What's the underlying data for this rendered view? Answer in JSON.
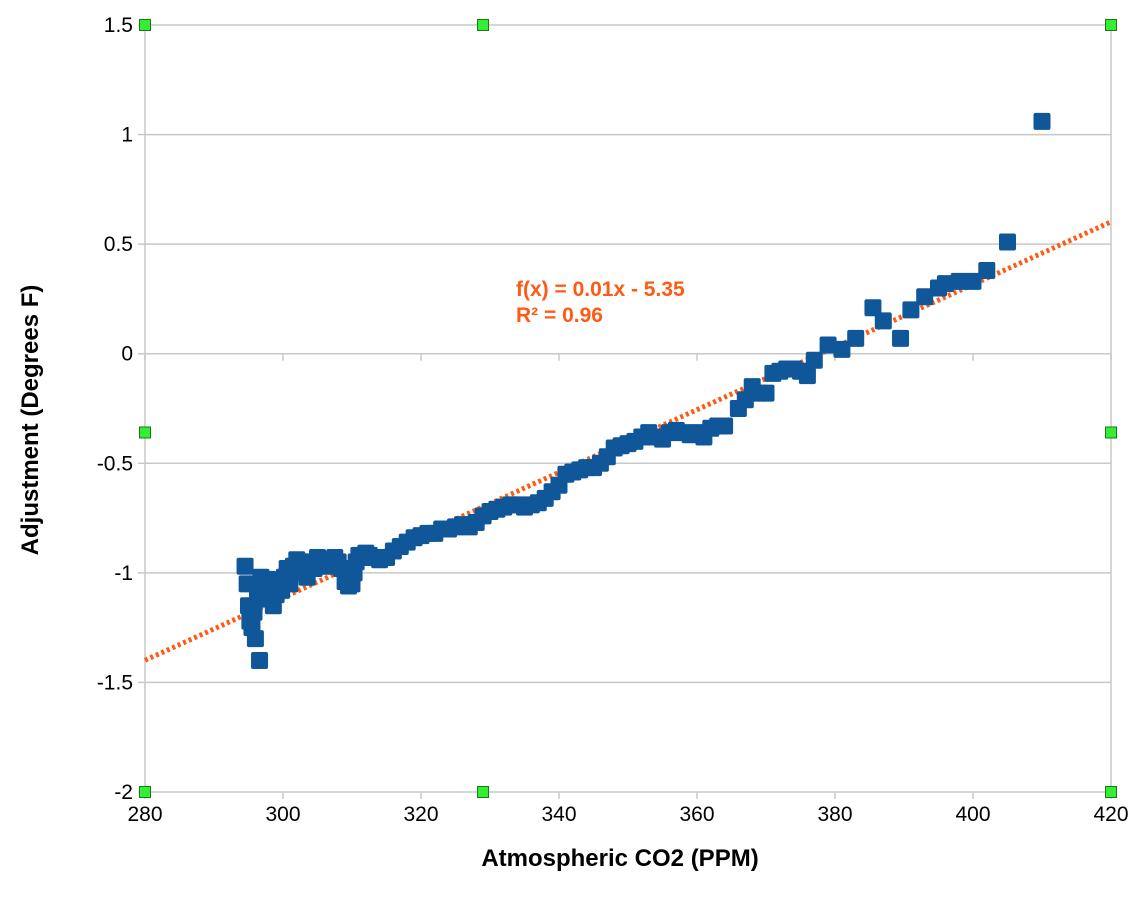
{
  "chart_data": {
    "type": "scatter",
    "xlabel": "Atmospheric CO2 (PPM)",
    "ylabel": "Adjustment (Degrees F)",
    "xlim": [
      280,
      420
    ],
    "ylim": [
      -2,
      1.5
    ],
    "xticks": [
      280,
      300,
      320,
      340,
      360,
      380,
      400,
      420
    ],
    "yticks": [
      1.5,
      1,
      0.5,
      0,
      -0.5,
      -1,
      -1.5,
      -2
    ],
    "ytick_labels": [
      "1.5",
      "1",
      "0.5",
      "0",
      "-0.5",
      "-1",
      "-1.5",
      "-2"
    ],
    "grid": "horizontal",
    "marker": "square",
    "colors": {
      "points": "#0f5799",
      "trendline": "#ff5a14",
      "grid": "#c8c8c8",
      "handles": "#33ee33"
    },
    "trendline": {
      "slope": 0.01429,
      "intercept": -5.4,
      "equation": "f(x) = 0.01x - 5.35",
      "r_squared": "R² = 0.96"
    },
    "series": [
      {
        "points": [
          [
            294.5,
            -0.97
          ],
          [
            294.8,
            -1.05
          ],
          [
            295.0,
            -1.15
          ],
          [
            295.2,
            -1.22
          ],
          [
            295.5,
            -1.25
          ],
          [
            295.8,
            -1.18
          ],
          [
            296.0,
            -1.3
          ],
          [
            296.3,
            -1.1
          ],
          [
            296.6,
            -1.4
          ],
          [
            296.8,
            -1.02
          ],
          [
            297.0,
            -1.08
          ],
          [
            297.4,
            -1.12
          ],
          [
            297.8,
            -1.03
          ],
          [
            298.2,
            -1.06
          ],
          [
            298.6,
            -1.15
          ],
          [
            299.0,
            -1.1
          ],
          [
            299.4,
            -1.05
          ],
          [
            299.8,
            -1.08
          ],
          [
            300.2,
            -1.02
          ],
          [
            300.6,
            -0.98
          ],
          [
            301.0,
            -1.05
          ],
          [
            301.5,
            -0.97
          ],
          [
            302.0,
            -0.94
          ],
          [
            302.5,
            -1.0
          ],
          [
            303.0,
            -0.96
          ],
          [
            303.5,
            -1.02
          ],
          [
            304.0,
            -0.95
          ],
          [
            304.5,
            -0.98
          ],
          [
            305.0,
            -0.93
          ],
          [
            305.5,
            -0.96
          ],
          [
            306.0,
            -0.94
          ],
          [
            306.5,
            -0.97
          ],
          [
            307.0,
            -0.95
          ],
          [
            307.5,
            -0.93
          ],
          [
            308.0,
            -0.95
          ],
          [
            308.5,
            -0.98
          ],
          [
            309.0,
            -1.04
          ],
          [
            309.5,
            -1.06
          ],
          [
            310.0,
            -1.05
          ],
          [
            310.3,
            -1.0
          ],
          [
            310.6,
            -0.95
          ],
          [
            311.0,
            -0.92
          ],
          [
            311.5,
            -0.93
          ],
          [
            312.0,
            -0.91
          ],
          [
            312.5,
            -0.92
          ],
          [
            313.0,
            -0.93
          ],
          [
            314.0,
            -0.94
          ],
          [
            315.0,
            -0.93
          ],
          [
            316.0,
            -0.9
          ],
          [
            317.0,
            -0.88
          ],
          [
            318.0,
            -0.86
          ],
          [
            319.0,
            -0.84
          ],
          [
            320.0,
            -0.83
          ],
          [
            321.0,
            -0.82
          ],
          [
            322.0,
            -0.82
          ],
          [
            323.0,
            -0.8
          ],
          [
            324.0,
            -0.8
          ],
          [
            325.0,
            -0.79
          ],
          [
            326.0,
            -0.78
          ],
          [
            327.0,
            -0.79
          ],
          [
            328.0,
            -0.77
          ],
          [
            329.0,
            -0.74
          ],
          [
            330.0,
            -0.72
          ],
          [
            331.0,
            -0.71
          ],
          [
            332.0,
            -0.7
          ],
          [
            333.0,
            -0.69
          ],
          [
            334.0,
            -0.69
          ],
          [
            335.0,
            -0.7
          ],
          [
            336.0,
            -0.69
          ],
          [
            337.0,
            -0.68
          ],
          [
            338.0,
            -0.66
          ],
          [
            339.0,
            -0.63
          ],
          [
            340.0,
            -0.6
          ],
          [
            341.0,
            -0.55
          ],
          [
            342.0,
            -0.54
          ],
          [
            343.0,
            -0.53
          ],
          [
            344.0,
            -0.52
          ],
          [
            345.0,
            -0.52
          ],
          [
            346.0,
            -0.5
          ],
          [
            347.0,
            -0.47
          ],
          [
            348.0,
            -0.43
          ],
          [
            349.0,
            -0.42
          ],
          [
            350.0,
            -0.41
          ],
          [
            351.0,
            -0.4
          ],
          [
            352.0,
            -0.38
          ],
          [
            353.0,
            -0.36
          ],
          [
            354.0,
            -0.38
          ],
          [
            355.0,
            -0.39
          ],
          [
            356.0,
            -0.36
          ],
          [
            357.0,
            -0.35
          ],
          [
            358.0,
            -0.36
          ],
          [
            359.0,
            -0.37
          ],
          [
            360.0,
            -0.36
          ],
          [
            361.0,
            -0.38
          ],
          [
            362.0,
            -0.34
          ],
          [
            363.0,
            -0.33
          ],
          [
            364.0,
            -0.33
          ],
          [
            366.0,
            -0.25
          ],
          [
            367.0,
            -0.21
          ],
          [
            368.0,
            -0.15
          ],
          [
            369.0,
            -0.18
          ],
          [
            370.0,
            -0.18
          ],
          [
            371.0,
            -0.09
          ],
          [
            372.0,
            -0.08
          ],
          [
            373.0,
            -0.07
          ],
          [
            374.0,
            -0.07
          ],
          [
            375.0,
            -0.08
          ],
          [
            376.0,
            -0.1
          ],
          [
            377.0,
            -0.03
          ],
          [
            379.0,
            0.04
          ],
          [
            381.0,
            0.02
          ],
          [
            383.0,
            0.07
          ],
          [
            385.5,
            0.21
          ],
          [
            387.0,
            0.15
          ],
          [
            389.5,
            0.07
          ],
          [
            391.0,
            0.2
          ],
          [
            393.0,
            0.26
          ],
          [
            395.0,
            0.3
          ],
          [
            396.0,
            0.32
          ],
          [
            398.0,
            0.33
          ],
          [
            400.0,
            0.33
          ],
          [
            402.0,
            0.38
          ],
          [
            405.0,
            0.51
          ],
          [
            410.0,
            1.06
          ]
        ]
      }
    ]
  }
}
